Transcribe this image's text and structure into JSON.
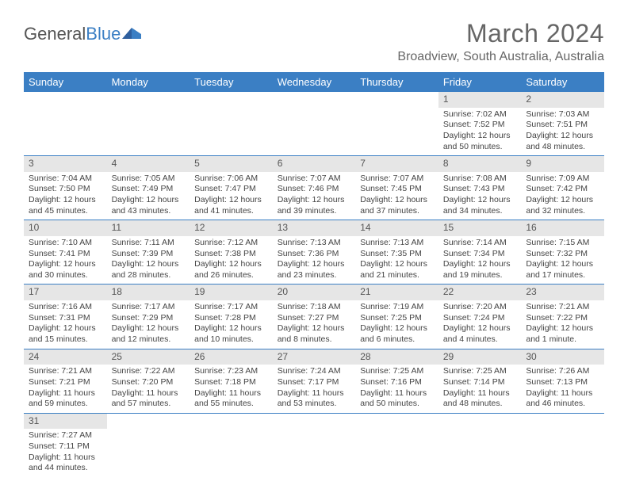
{
  "logo": {
    "text1": "General",
    "text2": "Blue"
  },
  "title": "March 2024",
  "location": "Broadview, South Australia, Australia",
  "weekdays": [
    "Sunday",
    "Monday",
    "Tuesday",
    "Wednesday",
    "Thursday",
    "Friday",
    "Saturday"
  ],
  "colors": {
    "headerBg": "#3b7fc4",
    "headerText": "#ffffff",
    "dayNumBg": "#e6e6e6",
    "text": "#444444",
    "titleText": "#666666"
  },
  "weeks": [
    [
      null,
      null,
      null,
      null,
      null,
      {
        "n": "1",
        "sr": "Sunrise: 7:02 AM",
        "ss": "Sunset: 7:52 PM",
        "dl1": "Daylight: 12 hours",
        "dl2": "and 50 minutes."
      },
      {
        "n": "2",
        "sr": "Sunrise: 7:03 AM",
        "ss": "Sunset: 7:51 PM",
        "dl1": "Daylight: 12 hours",
        "dl2": "and 48 minutes."
      }
    ],
    [
      {
        "n": "3",
        "sr": "Sunrise: 7:04 AM",
        "ss": "Sunset: 7:50 PM",
        "dl1": "Daylight: 12 hours",
        "dl2": "and 45 minutes."
      },
      {
        "n": "4",
        "sr": "Sunrise: 7:05 AM",
        "ss": "Sunset: 7:49 PM",
        "dl1": "Daylight: 12 hours",
        "dl2": "and 43 minutes."
      },
      {
        "n": "5",
        "sr": "Sunrise: 7:06 AM",
        "ss": "Sunset: 7:47 PM",
        "dl1": "Daylight: 12 hours",
        "dl2": "and 41 minutes."
      },
      {
        "n": "6",
        "sr": "Sunrise: 7:07 AM",
        "ss": "Sunset: 7:46 PM",
        "dl1": "Daylight: 12 hours",
        "dl2": "and 39 minutes."
      },
      {
        "n": "7",
        "sr": "Sunrise: 7:07 AM",
        "ss": "Sunset: 7:45 PM",
        "dl1": "Daylight: 12 hours",
        "dl2": "and 37 minutes."
      },
      {
        "n": "8",
        "sr": "Sunrise: 7:08 AM",
        "ss": "Sunset: 7:43 PM",
        "dl1": "Daylight: 12 hours",
        "dl2": "and 34 minutes."
      },
      {
        "n": "9",
        "sr": "Sunrise: 7:09 AM",
        "ss": "Sunset: 7:42 PM",
        "dl1": "Daylight: 12 hours",
        "dl2": "and 32 minutes."
      }
    ],
    [
      {
        "n": "10",
        "sr": "Sunrise: 7:10 AM",
        "ss": "Sunset: 7:41 PM",
        "dl1": "Daylight: 12 hours",
        "dl2": "and 30 minutes."
      },
      {
        "n": "11",
        "sr": "Sunrise: 7:11 AM",
        "ss": "Sunset: 7:39 PM",
        "dl1": "Daylight: 12 hours",
        "dl2": "and 28 minutes."
      },
      {
        "n": "12",
        "sr": "Sunrise: 7:12 AM",
        "ss": "Sunset: 7:38 PM",
        "dl1": "Daylight: 12 hours",
        "dl2": "and 26 minutes."
      },
      {
        "n": "13",
        "sr": "Sunrise: 7:13 AM",
        "ss": "Sunset: 7:36 PM",
        "dl1": "Daylight: 12 hours",
        "dl2": "and 23 minutes."
      },
      {
        "n": "14",
        "sr": "Sunrise: 7:13 AM",
        "ss": "Sunset: 7:35 PM",
        "dl1": "Daylight: 12 hours",
        "dl2": "and 21 minutes."
      },
      {
        "n": "15",
        "sr": "Sunrise: 7:14 AM",
        "ss": "Sunset: 7:34 PM",
        "dl1": "Daylight: 12 hours",
        "dl2": "and 19 minutes."
      },
      {
        "n": "16",
        "sr": "Sunrise: 7:15 AM",
        "ss": "Sunset: 7:32 PM",
        "dl1": "Daylight: 12 hours",
        "dl2": "and 17 minutes."
      }
    ],
    [
      {
        "n": "17",
        "sr": "Sunrise: 7:16 AM",
        "ss": "Sunset: 7:31 PM",
        "dl1": "Daylight: 12 hours",
        "dl2": "and 15 minutes."
      },
      {
        "n": "18",
        "sr": "Sunrise: 7:17 AM",
        "ss": "Sunset: 7:29 PM",
        "dl1": "Daylight: 12 hours",
        "dl2": "and 12 minutes."
      },
      {
        "n": "19",
        "sr": "Sunrise: 7:17 AM",
        "ss": "Sunset: 7:28 PM",
        "dl1": "Daylight: 12 hours",
        "dl2": "and 10 minutes."
      },
      {
        "n": "20",
        "sr": "Sunrise: 7:18 AM",
        "ss": "Sunset: 7:27 PM",
        "dl1": "Daylight: 12 hours",
        "dl2": "and 8 minutes."
      },
      {
        "n": "21",
        "sr": "Sunrise: 7:19 AM",
        "ss": "Sunset: 7:25 PM",
        "dl1": "Daylight: 12 hours",
        "dl2": "and 6 minutes."
      },
      {
        "n": "22",
        "sr": "Sunrise: 7:20 AM",
        "ss": "Sunset: 7:24 PM",
        "dl1": "Daylight: 12 hours",
        "dl2": "and 4 minutes."
      },
      {
        "n": "23",
        "sr": "Sunrise: 7:21 AM",
        "ss": "Sunset: 7:22 PM",
        "dl1": "Daylight: 12 hours",
        "dl2": "and 1 minute."
      }
    ],
    [
      {
        "n": "24",
        "sr": "Sunrise: 7:21 AM",
        "ss": "Sunset: 7:21 PM",
        "dl1": "Daylight: 11 hours",
        "dl2": "and 59 minutes."
      },
      {
        "n": "25",
        "sr": "Sunrise: 7:22 AM",
        "ss": "Sunset: 7:20 PM",
        "dl1": "Daylight: 11 hours",
        "dl2": "and 57 minutes."
      },
      {
        "n": "26",
        "sr": "Sunrise: 7:23 AM",
        "ss": "Sunset: 7:18 PM",
        "dl1": "Daylight: 11 hours",
        "dl2": "and 55 minutes."
      },
      {
        "n": "27",
        "sr": "Sunrise: 7:24 AM",
        "ss": "Sunset: 7:17 PM",
        "dl1": "Daylight: 11 hours",
        "dl2": "and 53 minutes."
      },
      {
        "n": "28",
        "sr": "Sunrise: 7:25 AM",
        "ss": "Sunset: 7:16 PM",
        "dl1": "Daylight: 11 hours",
        "dl2": "and 50 minutes."
      },
      {
        "n": "29",
        "sr": "Sunrise: 7:25 AM",
        "ss": "Sunset: 7:14 PM",
        "dl1": "Daylight: 11 hours",
        "dl2": "and 48 minutes."
      },
      {
        "n": "30",
        "sr": "Sunrise: 7:26 AM",
        "ss": "Sunset: 7:13 PM",
        "dl1": "Daylight: 11 hours",
        "dl2": "and 46 minutes."
      }
    ],
    [
      {
        "n": "31",
        "sr": "Sunrise: 7:27 AM",
        "ss": "Sunset: 7:11 PM",
        "dl1": "Daylight: 11 hours",
        "dl2": "and 44 minutes."
      },
      null,
      null,
      null,
      null,
      null,
      null
    ]
  ]
}
